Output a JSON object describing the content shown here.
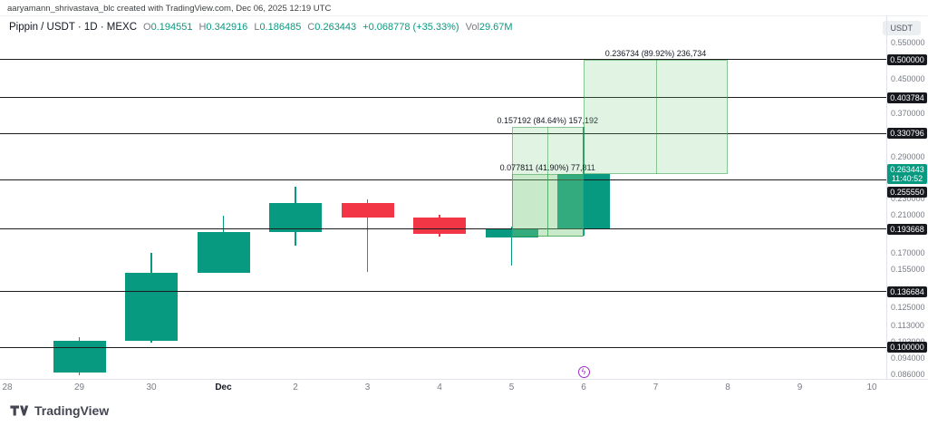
{
  "attribution": "aaryamann_shrivastava_blc created with TradingView.com, Dec 06, 2025 12:19 UTC",
  "header": {
    "symbol": "Pippin / USDT · 1D · MEXC",
    "ohlc": [
      {
        "label": "O",
        "value": "0.194551"
      },
      {
        "label": "H",
        "value": "0.342916"
      },
      {
        "label": "L",
        "value": "0.186485"
      },
      {
        "label": "C",
        "value": "0.263443"
      }
    ],
    "change": "+0.068778 (+35.33%)",
    "vol_label": "Vol",
    "vol_value": "29.67M"
  },
  "axis_currency": "USDT",
  "logo_text": "TradingView",
  "colors": {
    "up": "#089981",
    "down": "#f23645",
    "level_line": "#1c1c1c",
    "badge_bg": "#16181d",
    "current_badge_bg": "#089981",
    "box_fill": "rgba(120,200,125,0.22)",
    "box_border": "rgba(60,160,80,0.55)",
    "marker": "#a02cc8",
    "tick_text": "#787b86"
  },
  "chart_data": {
    "type": "candlestick",
    "title": "Pippin / USDT 1D MEXC",
    "categories": [
      "28",
      "29",
      "30",
      "Dec",
      "2",
      "3",
      "4",
      "5",
      "6",
      "7",
      "8",
      "9",
      "10"
    ],
    "x_scale": {
      "x0": 8,
      "dx": 79.5
    },
    "y_scale": {
      "type": "log",
      "price_a": 0.55,
      "y_a": 47,
      "price_b": 0.086,
      "y_b": 413
    },
    "candles": [
      {
        "bar": 1,
        "o": 0.087,
        "h": 0.106,
        "l": 0.0855,
        "c": 0.1035
      },
      {
        "bar": 2,
        "o": 0.1035,
        "h": 0.17,
        "l": 0.1025,
        "c": 0.152
      },
      {
        "bar": 3,
        "o": 0.152,
        "h": 0.209,
        "l": 0.1515,
        "c": 0.191
      },
      {
        "bar": 4,
        "o": 0.191,
        "h": 0.2455,
        "l": 0.177,
        "c": 0.2245
      },
      {
        "bar": 5,
        "o": 0.2245,
        "h": 0.2285,
        "l": 0.1525,
        "c": 0.2067
      },
      {
        "bar": 6,
        "o": 0.2067,
        "h": 0.2095,
        "l": 0.186,
        "c": 0.1886
      },
      {
        "bar": 7,
        "o": 0.1848,
        "h": 0.197,
        "l": 0.158,
        "c": 0.1946
      },
      {
        "bar": 8,
        "o": 0.194551,
        "h": 0.342916,
        "l": 0.186485,
        "c": 0.263443
      }
    ],
    "levels": [
      {
        "price": 0.5,
        "label": "0.500000",
        "label_dy": 0
      },
      {
        "price": 0.403784,
        "label": "0.403784",
        "label_dy": 0
      },
      {
        "price": 0.330796,
        "label": "0.330796",
        "label_dy": 0
      },
      {
        "price": 0.25555,
        "label": "0.255550",
        "label_dy": 14
      },
      {
        "price": 0.193668,
        "label": "0.193668",
        "label_dy": 0
      },
      {
        "price": 0.136684,
        "label": "0.136684",
        "label_dy": 0
      },
      {
        "price": 0.1,
        "label": "0.100000",
        "label_dy": 0
      }
    ],
    "y_ticks": [
      0.55,
      0.45,
      0.37,
      0.29,
      0.23,
      0.21,
      0.17,
      0.155,
      0.125,
      0.113,
      0.103,
      0.094,
      0.086
    ],
    "current_price": {
      "price": 0.263443,
      "label": "0.263443",
      "countdown": "11:40:52"
    },
    "price_ranges": [
      {
        "from_bar": 7,
        "to_bar": 8,
        "price_from": 0.185724,
        "price_to": 0.342916,
        "label": "0.157192 (84.64%) 157,192"
      },
      {
        "from_bar": 7,
        "to_bar": 8,
        "price_from": 0.185724,
        "price_to": 0.263535,
        "label": "0.077811 (41.90%) 77,811"
      },
      {
        "from_bar": 8,
        "to_bar": 10,
        "price_from": 0.263273,
        "price_to": 0.500007,
        "label": "0.236734 (89.92%) 236,734"
      }
    ],
    "marker": {
      "bar": 8,
      "glyph": "ϟ"
    }
  }
}
